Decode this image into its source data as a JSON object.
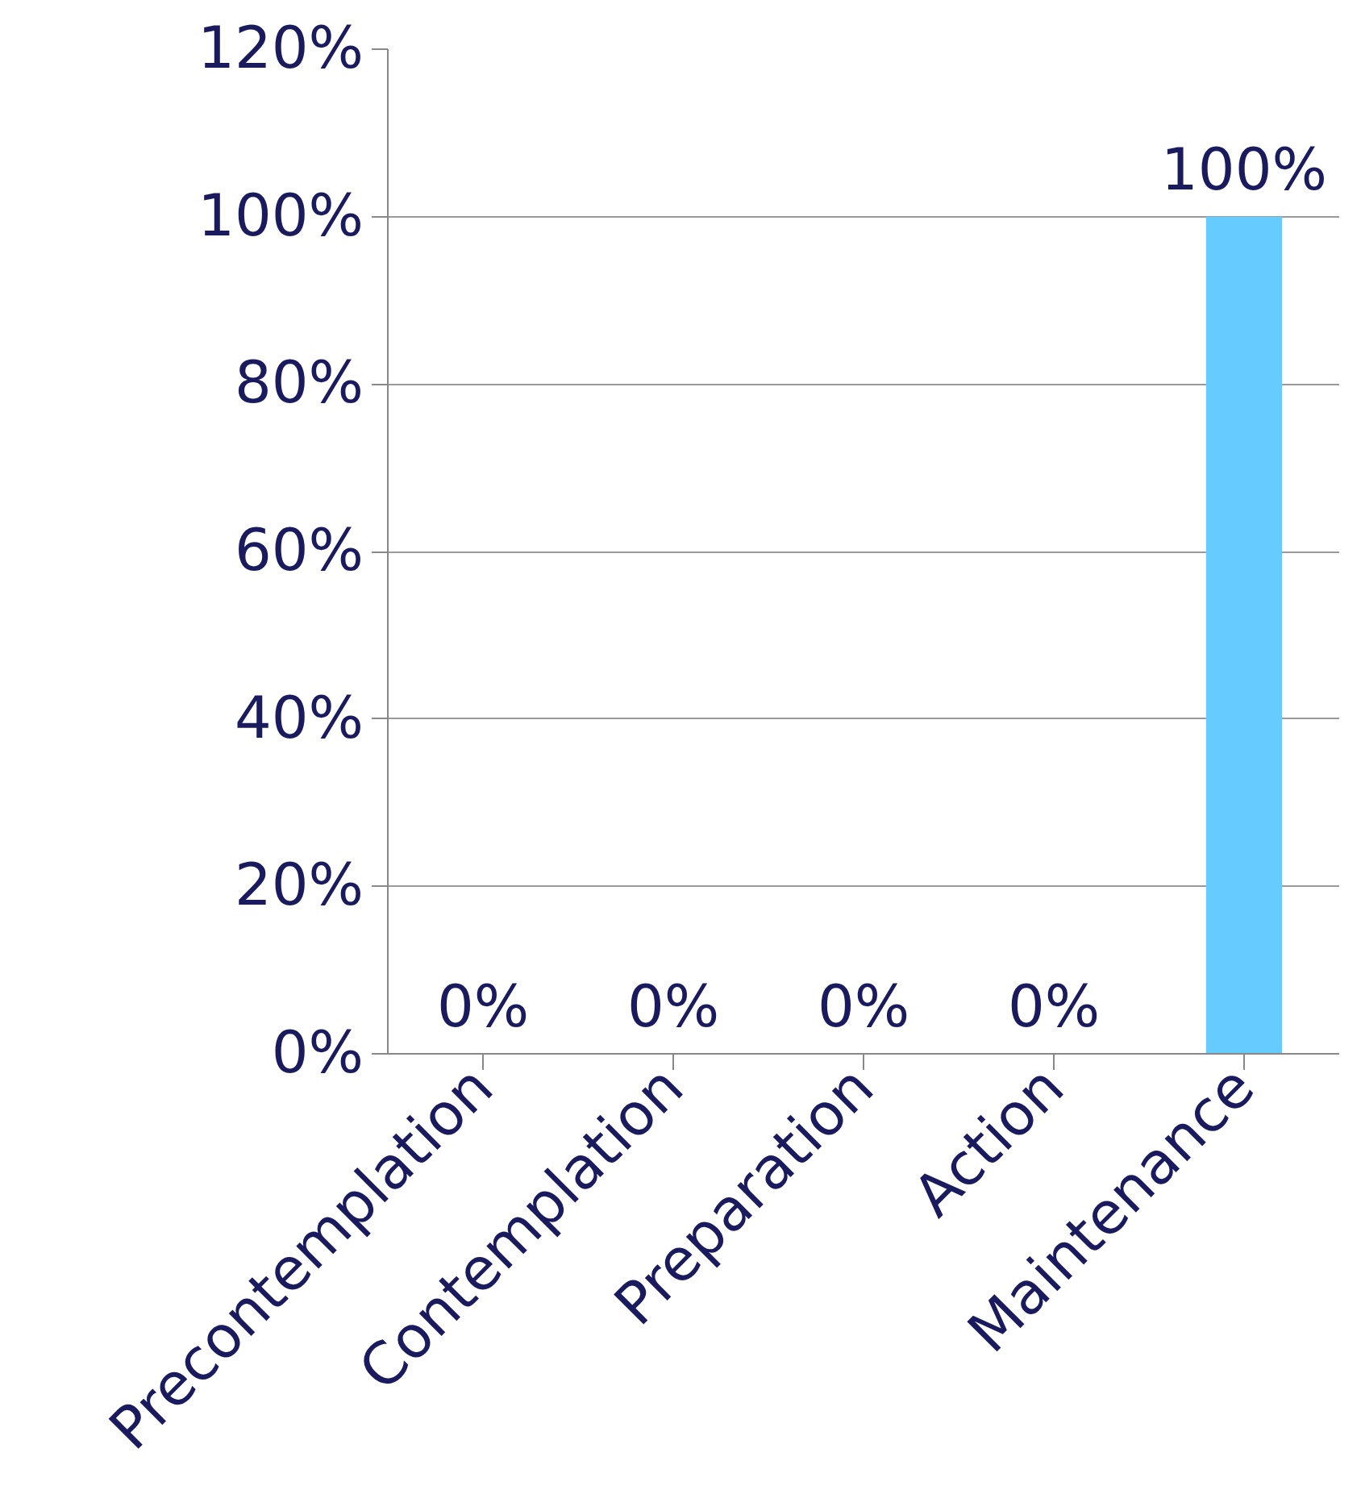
{
  "chart_data": {
    "type": "bar",
    "categories": [
      "Precontemplation",
      "Contemplation",
      "Preparation",
      "Action",
      "Maintenance"
    ],
    "values": [
      0,
      0,
      0,
      0,
      100
    ],
    "color": "#66ccff",
    "value_labels": [
      "0%",
      "0%",
      "0%",
      "0%",
      "100%"
    ],
    "ylim": [
      0,
      120
    ],
    "yticks": [
      {
        "value": 0,
        "label": "0%"
      },
      {
        "value": 20,
        "label": "20%"
      },
      {
        "value": 40,
        "label": "40%"
      },
      {
        "value": 60,
        "label": "60%"
      },
      {
        "value": 80,
        "label": "80%"
      },
      {
        "value": 100,
        "label": "100%"
      },
      {
        "value": 120,
        "label": "120%"
      }
    ],
    "grid": "y"
  }
}
